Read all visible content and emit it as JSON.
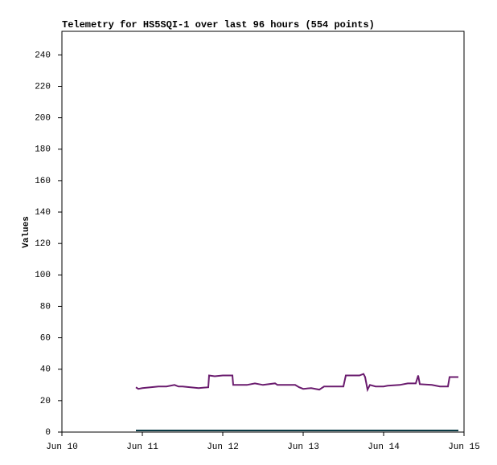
{
  "chart_data": {
    "type": "line",
    "title": "Telemetry for HS5SQI-1 over last 96 hours (554 points)",
    "y_label": "Values",
    "x": [
      10.92,
      10.95,
      11.0,
      11.1,
      11.2,
      11.3,
      11.4,
      11.45,
      11.5,
      11.6,
      11.7,
      11.82,
      11.83,
      11.9,
      12.0,
      12.12,
      12.13,
      12.3,
      12.4,
      12.5,
      12.65,
      12.68,
      12.9,
      12.95,
      13.0,
      13.1,
      13.2,
      13.26,
      13.5,
      13.53,
      13.7,
      13.75,
      13.77,
      13.8,
      13.83,
      13.9,
      14.0,
      14.05,
      14.2,
      14.3,
      14.4,
      14.43,
      14.45,
      14.6,
      14.7,
      14.8,
      14.82,
      14.93
    ],
    "series": [
      {
        "color": "#6a1b6e",
        "values": [
          28.5,
          27.5,
          28,
          28.5,
          29,
          29,
          30,
          29,
          29,
          28.5,
          28,
          28.5,
          36,
          35.5,
          36,
          36,
          30,
          30,
          31,
          30,
          31,
          30,
          30,
          28.5,
          27.5,
          28,
          27,
          29,
          29,
          36,
          36,
          37,
          35,
          27,
          30,
          29,
          29,
          29.5,
          30,
          31,
          31,
          36,
          30.5,
          30,
          29,
          29,
          35,
          35
        ]
      },
      {
        "color": "#0b3b45",
        "values": [
          1,
          1,
          1,
          1,
          1,
          1,
          1,
          1,
          1,
          1,
          1,
          1,
          1,
          1,
          1,
          1,
          1,
          1,
          1,
          1,
          1,
          1,
          1,
          1,
          1,
          1,
          1,
          1,
          1,
          1,
          1,
          1,
          1,
          1,
          1,
          1,
          1,
          1,
          1,
          1,
          1,
          1,
          1,
          1,
          1,
          1,
          1,
          1
        ]
      }
    ],
    "xlim": [
      10,
      15
    ],
    "xticks": [
      {
        "value": 10,
        "label": "Jun 10"
      },
      {
        "value": 11,
        "label": "Jun 11"
      },
      {
        "value": 12,
        "label": "Jun 12"
      },
      {
        "value": 13,
        "label": "Jun 13"
      },
      {
        "value": 14,
        "label": "Jun 14"
      },
      {
        "value": 15,
        "label": "Jun 15"
      }
    ],
    "ylim": [
      0,
      255
    ],
    "yticks": [
      0,
      20,
      40,
      60,
      80,
      100,
      120,
      140,
      160,
      180,
      200,
      220,
      240
    ],
    "grid": false
  }
}
